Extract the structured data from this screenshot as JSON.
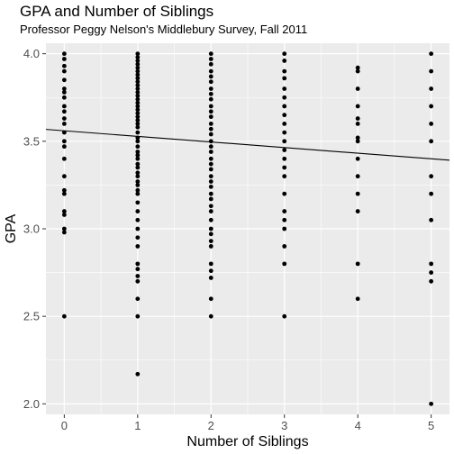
{
  "chart_data": {
    "type": "scatter",
    "title": "GPA and Number of Siblings",
    "subtitle": "Professor Peggy Nelson's Middlebury Survey, Fall 2011",
    "xlabel": "Number of Siblings",
    "ylabel": "GPA",
    "xlim": [
      -0.25,
      5.25
    ],
    "ylim": [
      1.94,
      4.06
    ],
    "x_ticks": [
      0,
      1,
      2,
      3,
      4,
      5
    ],
    "x_tick_labels": [
      "0",
      "1",
      "2",
      "3",
      "4",
      "5"
    ],
    "y_ticks": [
      2.0,
      2.5,
      3.0,
      3.5,
      4.0
    ],
    "y_tick_labels": [
      "2.0",
      "2.5",
      "3.0",
      "3.5",
      "4.0"
    ],
    "grid": true,
    "panel_background": "#ebebeb",
    "grid_color": "#ffffff",
    "point_color": "#000000",
    "regression_line": {
      "intercept": 3.56,
      "slope": -0.032,
      "color": "#000000"
    },
    "points": [
      {
        "x": 0,
        "y": 4.0
      },
      {
        "x": 0,
        "y": 3.97
      },
      {
        "x": 0,
        "y": 3.93
      },
      {
        "x": 0,
        "y": 3.9
      },
      {
        "x": 0,
        "y": 3.85
      },
      {
        "x": 0,
        "y": 3.8
      },
      {
        "x": 0,
        "y": 3.78
      },
      {
        "x": 0,
        "y": 3.75
      },
      {
        "x": 0,
        "y": 3.7
      },
      {
        "x": 0,
        "y": 3.67
      },
      {
        "x": 0,
        "y": 3.63
      },
      {
        "x": 0,
        "y": 3.6
      },
      {
        "x": 0,
        "y": 3.55
      },
      {
        "x": 0,
        "y": 3.5
      },
      {
        "x": 0,
        "y": 3.47
      },
      {
        "x": 0,
        "y": 3.4
      },
      {
        "x": 0,
        "y": 3.3
      },
      {
        "x": 0,
        "y": 3.22
      },
      {
        "x": 0,
        "y": 3.2
      },
      {
        "x": 0,
        "y": 3.1
      },
      {
        "x": 0,
        "y": 3.08
      },
      {
        "x": 0,
        "y": 3.0
      },
      {
        "x": 0,
        "y": 2.98
      },
      {
        "x": 0,
        "y": 2.5
      },
      {
        "x": 1,
        "y": 4.0
      },
      {
        "x": 1,
        "y": 3.98
      },
      {
        "x": 1,
        "y": 3.96
      },
      {
        "x": 1,
        "y": 3.94
      },
      {
        "x": 1,
        "y": 3.92
      },
      {
        "x": 1,
        "y": 3.9
      },
      {
        "x": 1,
        "y": 3.88
      },
      {
        "x": 1,
        "y": 3.86
      },
      {
        "x": 1,
        "y": 3.84
      },
      {
        "x": 1,
        "y": 3.82
      },
      {
        "x": 1,
        "y": 3.8
      },
      {
        "x": 1,
        "y": 3.78
      },
      {
        "x": 1,
        "y": 3.76
      },
      {
        "x": 1,
        "y": 3.74
      },
      {
        "x": 1,
        "y": 3.72
      },
      {
        "x": 1,
        "y": 3.7
      },
      {
        "x": 1,
        "y": 3.68
      },
      {
        "x": 1,
        "y": 3.66
      },
      {
        "x": 1,
        "y": 3.64
      },
      {
        "x": 1,
        "y": 3.62
      },
      {
        "x": 1,
        "y": 3.6
      },
      {
        "x": 1,
        "y": 3.58
      },
      {
        "x": 1,
        "y": 3.55
      },
      {
        "x": 1,
        "y": 3.52
      },
      {
        "x": 1,
        "y": 3.5
      },
      {
        "x": 1,
        "y": 3.47
      },
      {
        "x": 1,
        "y": 3.44
      },
      {
        "x": 1,
        "y": 3.42
      },
      {
        "x": 1,
        "y": 3.4
      },
      {
        "x": 1,
        "y": 3.37
      },
      {
        "x": 1,
        "y": 3.35
      },
      {
        "x": 1,
        "y": 3.32
      },
      {
        "x": 1,
        "y": 3.3
      },
      {
        "x": 1,
        "y": 3.27
      },
      {
        "x": 1,
        "y": 3.25
      },
      {
        "x": 1,
        "y": 3.22
      },
      {
        "x": 1,
        "y": 3.2
      },
      {
        "x": 1,
        "y": 3.15
      },
      {
        "x": 1,
        "y": 3.1
      },
      {
        "x": 1,
        "y": 3.05
      },
      {
        "x": 1,
        "y": 3.0
      },
      {
        "x": 1,
        "y": 2.95
      },
      {
        "x": 1,
        "y": 2.9
      },
      {
        "x": 1,
        "y": 2.8
      },
      {
        "x": 1,
        "y": 2.77
      },
      {
        "x": 1,
        "y": 2.73
      },
      {
        "x": 1,
        "y": 2.7
      },
      {
        "x": 1,
        "y": 2.6
      },
      {
        "x": 1,
        "y": 2.5
      },
      {
        "x": 1,
        "y": 2.17
      },
      {
        "x": 2,
        "y": 4.0
      },
      {
        "x": 2,
        "y": 3.97
      },
      {
        "x": 2,
        "y": 3.94
      },
      {
        "x": 2,
        "y": 3.9
      },
      {
        "x": 2,
        "y": 3.87
      },
      {
        "x": 2,
        "y": 3.84
      },
      {
        "x": 2,
        "y": 3.8
      },
      {
        "x": 2,
        "y": 3.77
      },
      {
        "x": 2,
        "y": 3.74
      },
      {
        "x": 2,
        "y": 3.7
      },
      {
        "x": 2,
        "y": 3.67
      },
      {
        "x": 2,
        "y": 3.64
      },
      {
        "x": 2,
        "y": 3.6
      },
      {
        "x": 2,
        "y": 3.57
      },
      {
        "x": 2,
        "y": 3.54
      },
      {
        "x": 2,
        "y": 3.5
      },
      {
        "x": 2,
        "y": 3.47
      },
      {
        "x": 2,
        "y": 3.44
      },
      {
        "x": 2,
        "y": 3.4
      },
      {
        "x": 2,
        "y": 3.37
      },
      {
        "x": 2,
        "y": 3.34
      },
      {
        "x": 2,
        "y": 3.3
      },
      {
        "x": 2,
        "y": 3.27
      },
      {
        "x": 2,
        "y": 3.24
      },
      {
        "x": 2,
        "y": 3.2
      },
      {
        "x": 2,
        "y": 3.17
      },
      {
        "x": 2,
        "y": 3.13
      },
      {
        "x": 2,
        "y": 3.1
      },
      {
        "x": 2,
        "y": 3.05
      },
      {
        "x": 2,
        "y": 3.0
      },
      {
        "x": 2,
        "y": 2.97
      },
      {
        "x": 2,
        "y": 2.93
      },
      {
        "x": 2,
        "y": 2.9
      },
      {
        "x": 2,
        "y": 2.8
      },
      {
        "x": 2,
        "y": 2.76
      },
      {
        "x": 2,
        "y": 2.72
      },
      {
        "x": 2,
        "y": 2.6
      },
      {
        "x": 2,
        "y": 2.5
      },
      {
        "x": 3,
        "y": 4.0
      },
      {
        "x": 3,
        "y": 3.96
      },
      {
        "x": 3,
        "y": 3.9
      },
      {
        "x": 3,
        "y": 3.86
      },
      {
        "x": 3,
        "y": 3.8
      },
      {
        "x": 3,
        "y": 3.75
      },
      {
        "x": 3,
        "y": 3.7
      },
      {
        "x": 3,
        "y": 3.65
      },
      {
        "x": 3,
        "y": 3.6
      },
      {
        "x": 3,
        "y": 3.55
      },
      {
        "x": 3,
        "y": 3.5
      },
      {
        "x": 3,
        "y": 3.45
      },
      {
        "x": 3,
        "y": 3.4
      },
      {
        "x": 3,
        "y": 3.35
      },
      {
        "x": 3,
        "y": 3.3
      },
      {
        "x": 3,
        "y": 3.2
      },
      {
        "x": 3,
        "y": 3.1
      },
      {
        "x": 3,
        "y": 3.05
      },
      {
        "x": 3,
        "y": 3.0
      },
      {
        "x": 3,
        "y": 2.9
      },
      {
        "x": 3,
        "y": 2.8
      },
      {
        "x": 3,
        "y": 2.5
      },
      {
        "x": 4,
        "y": 3.92
      },
      {
        "x": 4,
        "y": 3.9
      },
      {
        "x": 4,
        "y": 3.8
      },
      {
        "x": 4,
        "y": 3.7
      },
      {
        "x": 4,
        "y": 3.63
      },
      {
        "x": 4,
        "y": 3.6
      },
      {
        "x": 4,
        "y": 3.52
      },
      {
        "x": 4,
        "y": 3.5
      },
      {
        "x": 4,
        "y": 3.4
      },
      {
        "x": 4,
        "y": 3.3
      },
      {
        "x": 4,
        "y": 3.2
      },
      {
        "x": 4,
        "y": 3.1
      },
      {
        "x": 4,
        "y": 2.8
      },
      {
        "x": 4,
        "y": 2.6
      },
      {
        "x": 5,
        "y": 4.0
      },
      {
        "x": 5,
        "y": 3.9
      },
      {
        "x": 5,
        "y": 3.8
      },
      {
        "x": 5,
        "y": 3.7
      },
      {
        "x": 5,
        "y": 3.6
      },
      {
        "x": 5,
        "y": 3.5
      },
      {
        "x": 5,
        "y": 3.3
      },
      {
        "x": 5,
        "y": 3.2
      },
      {
        "x": 5,
        "y": 3.05
      },
      {
        "x": 5,
        "y": 2.8
      },
      {
        "x": 5,
        "y": 2.75
      },
      {
        "x": 5,
        "y": 2.7
      },
      {
        "x": 5,
        "y": 2.0
      }
    ]
  }
}
